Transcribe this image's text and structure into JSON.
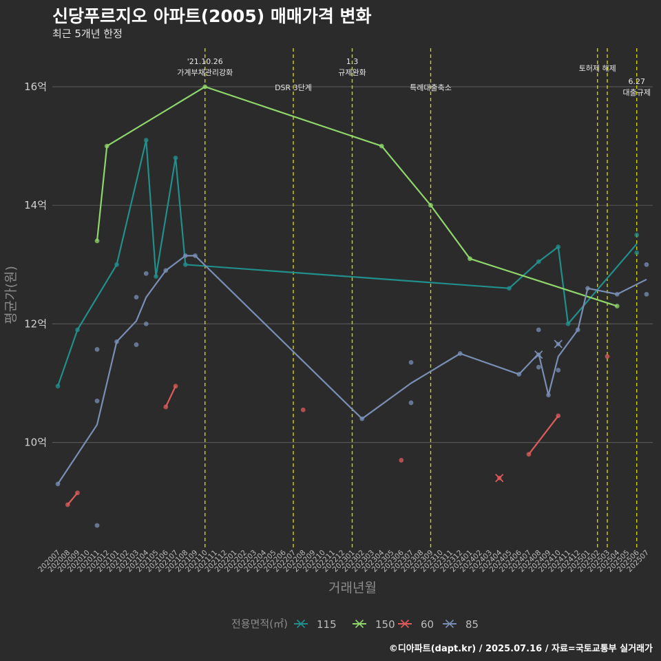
{
  "title": "신당푸르지오 아파트(2005) 매매가격 변화",
  "subtitle": "최근 5개년 한정",
  "caption": "©디아파트(dapt.kr) / 2025.07.16 / 자료=국토교통부 실거래가",
  "chart_data": {
    "type": "line",
    "xlabel": "거래년월",
    "ylabel": "평균가(원)",
    "y_ticks": [
      {
        "value": 10,
        "label": "10억"
      },
      {
        "value": 12,
        "label": "12억"
      },
      {
        "value": 14,
        "label": "14억"
      },
      {
        "value": 16,
        "label": "16억"
      }
    ],
    "ylim": [
      8.2,
      16.6
    ],
    "x_start": "202007",
    "x_end": "202507",
    "legend_title": "전용면적(㎡)",
    "series": [
      {
        "name": "115",
        "color": "#21908d",
        "line": [
          [
            "202007",
            10.95
          ],
          [
            "202009",
            11.9
          ],
          [
            "202101",
            13.0
          ],
          [
            "202104",
            15.1
          ],
          [
            "202105",
            12.8
          ],
          [
            "202107",
            14.8
          ],
          [
            "202108",
            13.0
          ],
          [
            "202405",
            12.6
          ],
          [
            "202408",
            13.05
          ],
          [
            "202410",
            13.3
          ],
          [
            "202411",
            12.0
          ],
          [
            "202506",
            13.35
          ]
        ],
        "points": [
          [
            "202007",
            10.95
          ],
          [
            "202009",
            11.9
          ],
          [
            "202101",
            13.0
          ],
          [
            "202104",
            15.1
          ],
          [
            "202105",
            12.8
          ],
          [
            "202107",
            14.8
          ],
          [
            "202108",
            13.0
          ],
          [
            "202405",
            12.6
          ],
          [
            "202408",
            13.05
          ],
          [
            "202410",
            13.3
          ],
          [
            "202411",
            12.0
          ],
          [
            "202506",
            13.5
          ],
          [
            "202506",
            13.2
          ]
        ],
        "crosses": []
      },
      {
        "name": "150",
        "color": "#8fd76b",
        "line": [
          [
            "202011",
            13.4
          ],
          [
            "202012",
            15.0
          ],
          [
            "202110",
            16.0
          ],
          [
            "202304",
            15.0
          ],
          [
            "202309",
            14.0
          ],
          [
            "202401",
            13.1
          ],
          [
            "202504",
            12.3
          ]
        ],
        "points": [
          [
            "202011",
            13.4
          ],
          [
            "202012",
            15.0
          ],
          [
            "202110",
            16.0
          ],
          [
            "202304",
            15.0
          ],
          [
            "202309",
            14.0
          ],
          [
            "202401",
            13.1
          ],
          [
            "202504",
            12.3
          ]
        ],
        "crosses": []
      },
      {
        "name": "60",
        "color": "#e05c5c",
        "line_segments": [
          [
            [
              "202008",
              8.95
            ],
            [
              "202009",
              9.15
            ]
          ],
          [
            [
              "202106",
              10.6
            ],
            [
              "202107",
              10.95
            ]
          ],
          [
            [
              "202407",
              9.8
            ],
            [
              "202410",
              10.45
            ]
          ]
        ],
        "points": [
          [
            "202008",
            8.95
          ],
          [
            "202009",
            9.15
          ],
          [
            "202106",
            10.6
          ],
          [
            "202107",
            10.95
          ],
          [
            "202208",
            10.55
          ],
          [
            "202306",
            9.7
          ],
          [
            "202407",
            9.8
          ],
          [
            "202410",
            10.45
          ],
          [
            "202503",
            11.45
          ]
        ],
        "crosses": [
          [
            "202404",
            9.4
          ]
        ]
      },
      {
        "name": "85",
        "color": "#7a8fb5",
        "line": [
          [
            "202007",
            9.3
          ],
          [
            "202011",
            10.3
          ],
          [
            "202101",
            11.7
          ],
          [
            "202103",
            12.05
          ],
          [
            "202104",
            12.45
          ],
          [
            "202106",
            12.9
          ],
          [
            "202108",
            13.15
          ],
          [
            "202109",
            13.15
          ],
          [
            "202302",
            10.4
          ],
          [
            "202307",
            11.0
          ],
          [
            "202312",
            11.5
          ],
          [
            "202406",
            11.15
          ],
          [
            "202408",
            11.5
          ],
          [
            "202409",
            10.8
          ],
          [
            "202410",
            11.45
          ],
          [
            "202412",
            11.9
          ],
          [
            "202501",
            12.6
          ],
          [
            "202504",
            12.5
          ],
          [
            "202507",
            12.75
          ]
        ],
        "points": [
          [
            "202007",
            9.3
          ],
          [
            "202011",
            11.57
          ],
          [
            "202011",
            10.7
          ],
          [
            "202011",
            8.6
          ],
          [
            "202101",
            11.7
          ],
          [
            "202103",
            12.45
          ],
          [
            "202103",
            11.65
          ],
          [
            "202104",
            12.0
          ],
          [
            "202104",
            12.85
          ],
          [
            "202106",
            12.9
          ],
          [
            "202108",
            13.15
          ],
          [
            "202109",
            13.15
          ],
          [
            "202302",
            10.4
          ],
          [
            "202307",
            11.35
          ],
          [
            "202307",
            10.67
          ],
          [
            "202312",
            11.5
          ],
          [
            "202406",
            11.15
          ],
          [
            "202408",
            11.9
          ],
          [
            "202408",
            11.27
          ],
          [
            "202409",
            10.8
          ],
          [
            "202410",
            11.22
          ],
          [
            "202412",
            11.9
          ],
          [
            "202501",
            12.6
          ],
          [
            "202504",
            12.5
          ],
          [
            "202507",
            13.0
          ],
          [
            "202507",
            12.5
          ]
        ],
        "crosses": [
          [
            "202408",
            11.48
          ],
          [
            "202410",
            11.66
          ]
        ]
      }
    ],
    "events": [
      {
        "month": "202110",
        "lines": [
          "'21.10.26",
          "가계부채관리강화"
        ],
        "level": 1
      },
      {
        "month": "202207",
        "lines": [
          "DSR 3단계"
        ],
        "level": 2
      },
      {
        "month": "202301",
        "lines": [
          "1.3",
          "규제완화"
        ],
        "level": 1
      },
      {
        "month": "202309",
        "lines": [
          "특례대출축소"
        ],
        "level": 2
      },
      {
        "month": "202502",
        "lines": [
          "토허제 해제"
        ],
        "level": 0
      },
      {
        "month": "202503",
        "lines": [],
        "level": 0
      },
      {
        "month": "202506",
        "lines": [
          "6.27",
          "대출규제"
        ],
        "level": 3
      }
    ]
  }
}
